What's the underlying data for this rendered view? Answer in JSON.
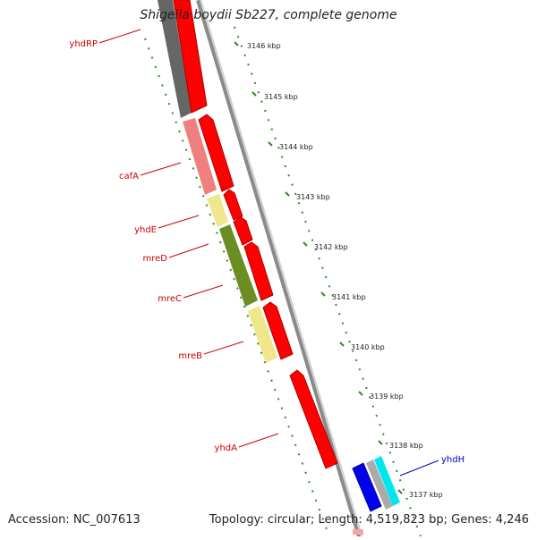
{
  "title": "Shigella boydii Sb227, complete genome",
  "footer": {
    "accession": "Accession: NC_007613",
    "summary": "Topology: circular; Length: 4,519,823 bp; Genes: 4,246"
  },
  "scale": {
    "ticks": [
      "3146 kbp",
      "3145 kbp",
      "3144 kbp",
      "3143 kbp",
      "3142 kbp",
      "3141 kbp",
      "3140 kbp",
      "3139 kbp",
      "3138 kbp",
      "3137 kbp"
    ]
  },
  "genes": {
    "left_labels": [
      "yhdRP",
      "cafA",
      "yhdE",
      "mreD",
      "mreC",
      "mreB",
      "yhdA"
    ],
    "right_labels": [
      "yhdH"
    ]
  },
  "colors": {
    "reverse_label": "#cc0000",
    "forward_label": "#0000cc",
    "cds": "#ff0000",
    "dotted_ring": "#2e8b22",
    "backbone": "#8a8a8a"
  }
}
